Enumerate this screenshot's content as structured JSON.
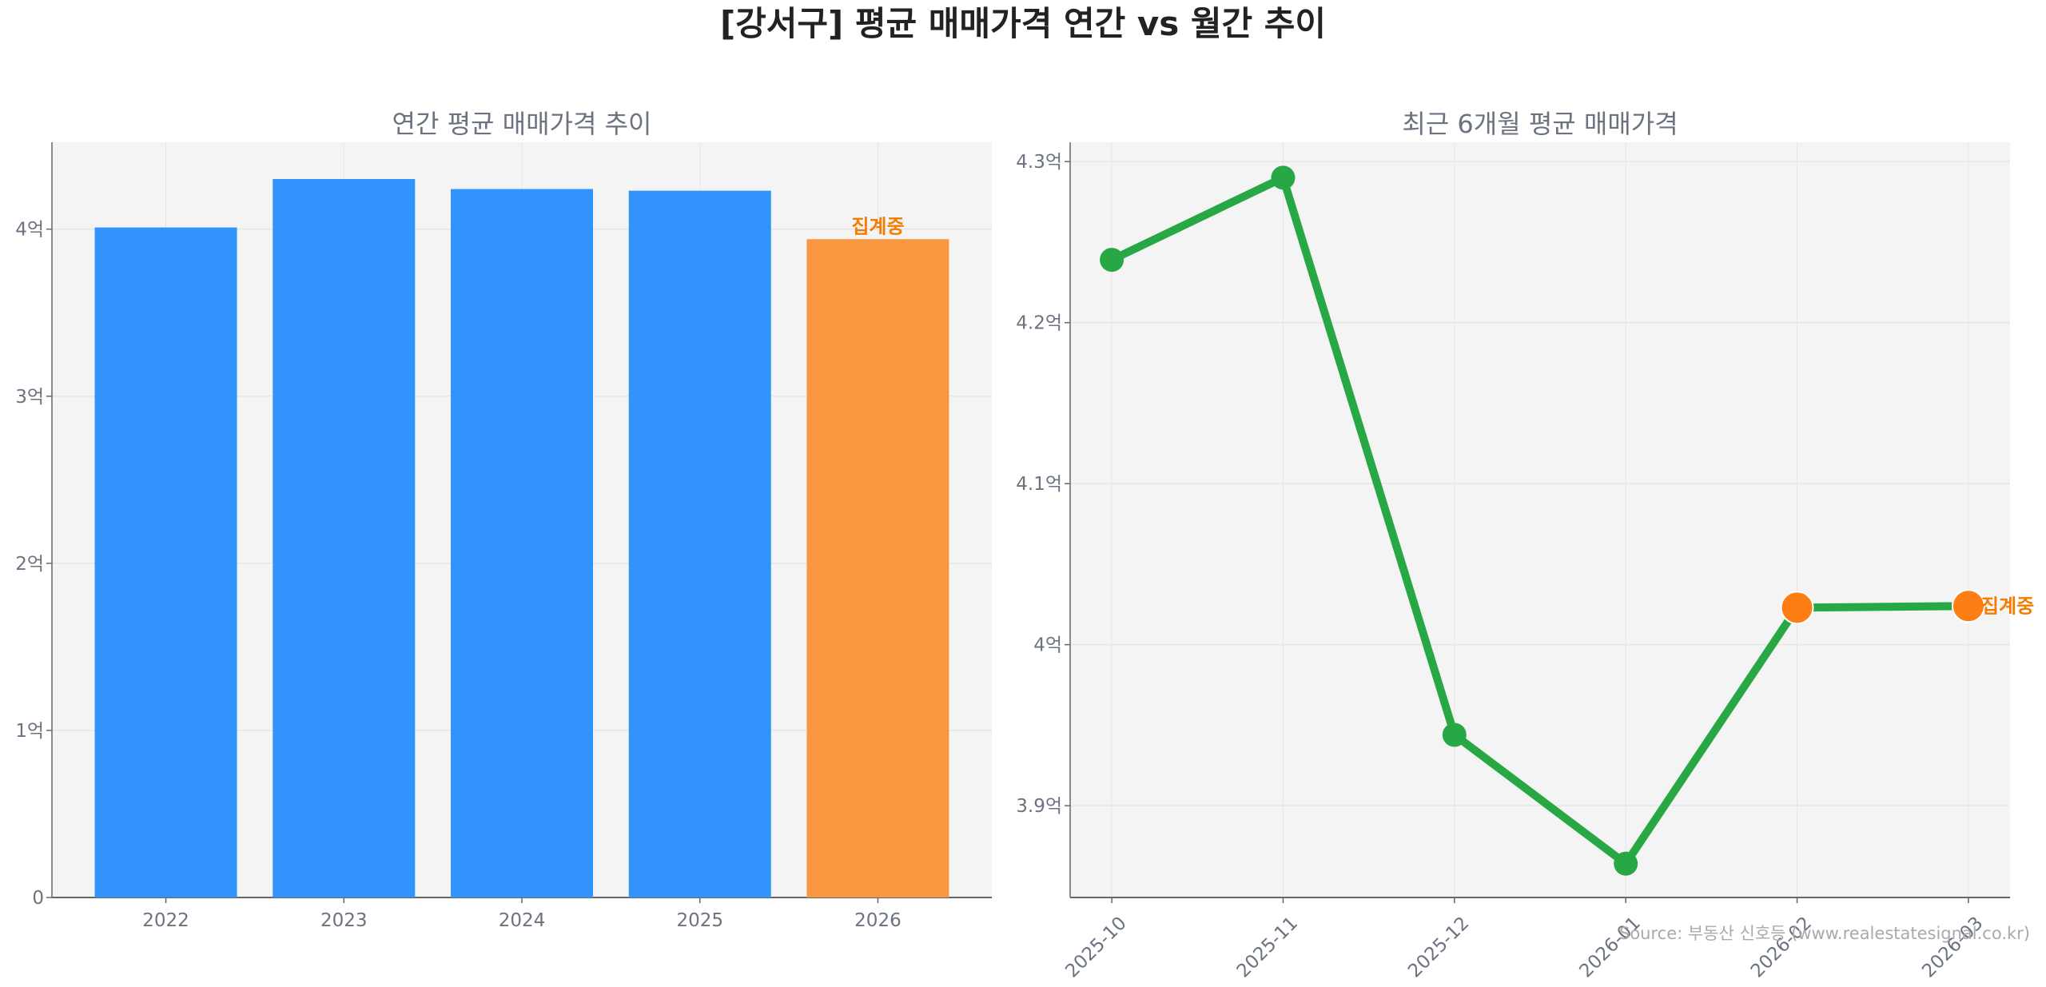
{
  "title": "[강서구] 평균 매매가격 연간 vs 월간 추이",
  "source": "Source: 부동산 신호등 (www.realestatesignal.co.kr)",
  "colors": {
    "bar": "#3193fb",
    "bar_partial": "#f99740",
    "line": "#28a745",
    "marker_partial": "#fd7e14",
    "annotation": "#f57c00",
    "plot_bg": "#f4f4f4"
  },
  "chart_data": [
    {
      "type": "bar",
      "title": "연간 평균 매매가격 추이",
      "categories": [
        "2022",
        "2023",
        "2024",
        "2025",
        "2026"
      ],
      "values": [
        4.01,
        4.3,
        4.24,
        4.23,
        3.94
      ],
      "unit": "억",
      "yticks": [
        0,
        1,
        2,
        3,
        4
      ],
      "ytick_labels": [
        "0",
        "1억",
        "2억",
        "3억",
        "4억"
      ],
      "ylim": [
        0,
        4.52
      ],
      "grid": true,
      "annotations": [
        {
          "category": "2026",
          "text": "집계중"
        }
      ]
    },
    {
      "type": "line",
      "title": "최근 6개월 평균 매매가격",
      "categories": [
        "2025-10",
        "2025-11",
        "2025-12",
        "2026-01",
        "2026-02",
        "2026-03"
      ],
      "values": [
        4.239,
        4.29,
        3.944,
        3.864,
        4.023,
        4.024
      ],
      "unit": "억",
      "yticks": [
        3.9,
        4.0,
        4.1,
        4.2,
        4.3
      ],
      "ytick_labels": [
        "3.9억",
        "4억",
        "4.1억",
        "4.2억",
        "4.3억"
      ],
      "ylim": [
        3.843,
        4.312
      ],
      "grid": true,
      "partial_points": [
        "2026-02",
        "2026-03"
      ],
      "annotations": [
        {
          "category": "2026-03",
          "text": "집계중"
        }
      ]
    }
  ]
}
